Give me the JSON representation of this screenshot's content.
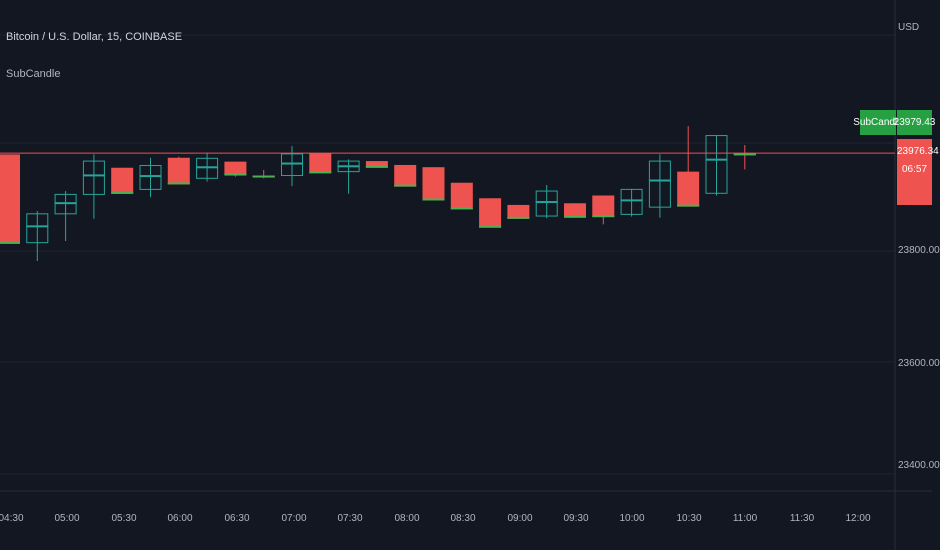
{
  "header": {
    "symbol_title": "Bitcoin / U.S. Dollar, 15, COINBASE",
    "indicator_name": "SubCandle"
  },
  "price_axis": {
    "currency": "USD",
    "ticks": [
      "23800.00",
      "23600.00",
      "23400.00"
    ]
  },
  "time_axis": {
    "ticks": [
      "04:30",
      "05:00",
      "05:30",
      "06:00",
      "06:30",
      "07:00",
      "07:30",
      "08:00",
      "08:30",
      "09:00",
      "09:30",
      "10:00",
      "10:30",
      "11:00",
      "11:30",
      "12:00"
    ]
  },
  "badges": {
    "indicator_label": "SubCandle",
    "indicator_value": "23979.43",
    "last_price": "23976.34",
    "countdown": "06:57"
  },
  "colors": {
    "background": "#131722",
    "bull": "#26a69a",
    "bear": "#ef5350",
    "sub_green": "#4caf50",
    "badge_green": "#26a042"
  },
  "chart_data": {
    "type": "candlestick",
    "symbol": "Bitcoin / U.S. Dollar",
    "interval": "15",
    "exchange": "COINBASE",
    "y_range": [
      23350,
      24120
    ],
    "last_price": 23976.34,
    "candles": [
      {
        "time": "04:15",
        "open": 23974,
        "high": 23974,
        "low": 23813,
        "close": 23813,
        "dir": "bear"
      },
      {
        "time": "04:30",
        "open": 23815,
        "high": 23872,
        "low": 23782,
        "close": 23867,
        "dir": "bull"
      },
      {
        "time": "04:45",
        "open": 23867,
        "high": 23908,
        "low": 23818,
        "close": 23902,
        "dir": "bull"
      },
      {
        "time": "05:00",
        "open": 23902,
        "high": 23974,
        "low": 23858,
        "close": 23962,
        "dir": "bull"
      },
      {
        "time": "05:15",
        "open": 23950,
        "high": 23950,
        "low": 23903,
        "close": 23903,
        "dir": "bear"
      },
      {
        "time": "05:30",
        "open": 23911,
        "high": 23968,
        "low": 23897,
        "close": 23954,
        "dir": "bull"
      },
      {
        "time": "05:45",
        "open": 23968,
        "high": 23970,
        "low": 23920,
        "close": 23920,
        "dir": "bear"
      },
      {
        "time": "06:00",
        "open": 23931,
        "high": 23977,
        "low": 23925,
        "close": 23967,
        "dir": "bull"
      },
      {
        "time": "06:15",
        "open": 23961,
        "high": 23961,
        "low": 23934,
        "close": 23936,
        "dir": "bear"
      },
      {
        "time": "06:30",
        "open": 23936,
        "high": 23946,
        "low": 23931,
        "close": 23934,
        "dir": "bear"
      },
      {
        "time": "06:45",
        "open": 23936,
        "high": 23989,
        "low": 23917,
        "close": 23975,
        "dir": "bull"
      },
      {
        "time": "07:00",
        "open": 23976,
        "high": 23976,
        "low": 23940,
        "close": 23940,
        "dir": "bear"
      },
      {
        "time": "07:15",
        "open": 23943,
        "high": 23965,
        "low": 23903,
        "close": 23962,
        "dir": "bull"
      },
      {
        "time": "07:30",
        "open": 23962,
        "high": 23962,
        "low": 23950,
        "close": 23950,
        "dir": "bear"
      },
      {
        "time": "07:45",
        "open": 23955,
        "high": 23955,
        "low": 23916,
        "close": 23916,
        "dir": "bear"
      },
      {
        "time": "08:00",
        "open": 23951,
        "high": 23951,
        "low": 23891,
        "close": 23891,
        "dir": "bear"
      },
      {
        "time": "08:15",
        "open": 23923,
        "high": 23923,
        "low": 23875,
        "close": 23875,
        "dir": "bear"
      },
      {
        "time": "08:30",
        "open": 23895,
        "high": 23895,
        "low": 23842,
        "close": 23842,
        "dir": "bear"
      },
      {
        "time": "08:45",
        "open": 23883,
        "high": 23883,
        "low": 23858,
        "close": 23858,
        "dir": "bear"
      },
      {
        "time": "09:00",
        "open": 23863,
        "high": 23919,
        "low": 23859,
        "close": 23908,
        "dir": "bull"
      },
      {
        "time": "09:15",
        "open": 23886,
        "high": 23886,
        "low": 23860,
        "close": 23860,
        "dir": "bear"
      },
      {
        "time": "09:30",
        "open": 23900,
        "high": 23900,
        "low": 23848,
        "close": 23861,
        "dir": "bear"
      },
      {
        "time": "09:45",
        "open": 23866,
        "high": 23912,
        "low": 23862,
        "close": 23911,
        "dir": "bull"
      },
      {
        "time": "10:00",
        "open": 23879,
        "high": 23974,
        "low": 23860,
        "close": 23962,
        "dir": "bull"
      },
      {
        "time": "10:15",
        "open": 23943,
        "high": 24025,
        "low": 23880,
        "close": 23880,
        "dir": "bear"
      },
      {
        "time": "10:30",
        "open": 23904,
        "high": 24009,
        "low": 23900,
        "close": 24008,
        "dir": "bull"
      },
      {
        "time": "10:45",
        "open": 23976,
        "high": 23991,
        "low": 23947,
        "close": 23976,
        "dir": "bear"
      }
    ]
  }
}
